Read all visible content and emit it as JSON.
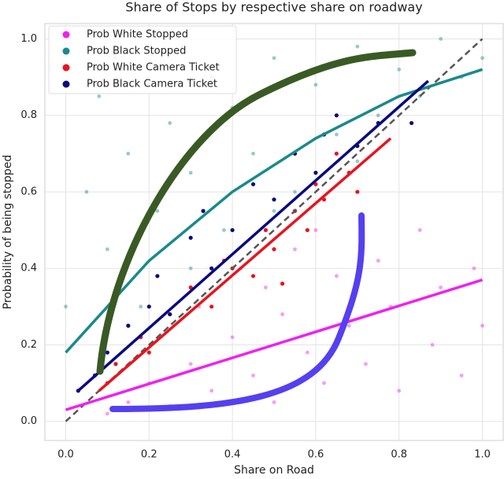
{
  "chart_data": {
    "type": "scatter",
    "title": "Share of Stops by respective share on roadway",
    "x_label": "Share on Road",
    "y_label": "Probability of being stopped",
    "xlim": [
      -0.05,
      1.05
    ],
    "ylim": [
      -0.05,
      1.04
    ],
    "xticks": [
      {
        "value": 0,
        "label": "0.0"
      },
      0.2,
      0.4,
      0.6,
      0.8,
      {
        "value": 1,
        "label": "1.0"
      }
    ],
    "yticks": [
      {
        "value": 0,
        "label": "0.0"
      },
      0.2,
      0.4,
      0.6,
      0.8,
      {
        "value": 1,
        "label": "1.0"
      }
    ],
    "grid": true,
    "legend": "upper left",
    "series": [
      {
        "name": "Prob White Stopped",
        "color": "#ee22ee",
        "x": [
          0.1,
          0.15,
          0.2,
          0.25,
          0.3,
          0.32,
          0.35,
          0.4,
          0.42,
          0.45,
          0.48,
          0.5,
          0.52,
          0.55,
          0.58,
          0.6,
          0.62,
          0.65,
          0.68,
          0.7,
          0.72,
          0.75,
          0.78,
          0.8,
          0.85,
          0.88,
          0.9,
          0.95,
          0.98,
          1.0
        ],
        "values": [
          0.02,
          0.05,
          0.1,
          0.04,
          0.15,
          0.3,
          0.08,
          0.22,
          0.4,
          0.12,
          0.35,
          0.05,
          0.28,
          0.45,
          0.18,
          0.5,
          0.1,
          0.38,
          0.25,
          0.6,
          0.15,
          0.42,
          0.3,
          0.08,
          0.5,
          0.2,
          0.35,
          0.12,
          0.4,
          0.25
        ],
        "fit": {
          "x": [
            0,
            1
          ],
          "values": [
            0.03,
            0.37
          ]
        }
      },
      {
        "name": "Prob Black Stopped",
        "color": "#1a8a8a",
        "x": [
          0.0,
          0.05,
          0.08,
          0.1,
          0.12,
          0.15,
          0.18,
          0.2,
          0.22,
          0.25,
          0.28,
          0.3,
          0.35,
          0.38,
          0.4,
          0.45,
          0.5,
          0.55,
          0.6,
          0.65,
          0.7,
          0.75,
          0.8,
          0.85,
          0.9,
          0.95,
          1.0,
          0.3,
          0.5,
          0.7
        ],
        "values": [
          0.3,
          0.6,
          0.85,
          0.45,
          0.95,
          0.7,
          0.3,
          0.88,
          0.55,
          0.78,
          0.98,
          0.65,
          0.9,
          0.5,
          0.82,
          0.7,
          0.95,
          0.6,
          0.88,
          0.75,
          0.98,
          0.8,
          0.92,
          0.85,
          1.0,
          0.9,
          0.95,
          0.4,
          0.55,
          0.68
        ],
        "fit": {
          "x": [
            0,
            0.2,
            0.4,
            0.6,
            0.8,
            1
          ],
          "values": [
            0.18,
            0.42,
            0.6,
            0.74,
            0.85,
            0.92
          ]
        }
      },
      {
        "name": "Prob White Camera Ticket",
        "color": "#e8141e",
        "x": [
          0.1,
          0.12,
          0.18,
          0.2,
          0.25,
          0.3,
          0.35,
          0.38,
          0.4,
          0.45,
          0.48,
          0.5,
          0.52,
          0.55,
          0.58,
          0.6,
          0.62,
          0.65,
          0.68,
          0.7
        ],
        "values": [
          0.1,
          0.15,
          0.22,
          0.18,
          0.28,
          0.35,
          0.3,
          0.42,
          0.4,
          0.38,
          0.5,
          0.45,
          0.36,
          0.55,
          0.5,
          0.62,
          0.58,
          0.7,
          0.65,
          0.6
        ],
        "fit": {
          "x": [
            0.08,
            0.78
          ],
          "values": [
            0.08,
            0.74
          ]
        }
      },
      {
        "name": "Prob Black Camera Ticket",
        "color": "#0a0a80",
        "x": [
          0.03,
          0.07,
          0.1,
          0.15,
          0.2,
          0.22,
          0.25,
          0.3,
          0.33,
          0.35,
          0.4,
          0.45,
          0.5,
          0.55,
          0.6,
          0.62,
          0.65,
          0.7,
          0.75,
          0.83
        ],
        "values": [
          0.08,
          0.12,
          0.18,
          0.25,
          0.3,
          0.38,
          0.28,
          0.48,
          0.55,
          0.4,
          0.5,
          0.62,
          0.58,
          0.7,
          0.65,
          0.75,
          0.8,
          0.72,
          0.78,
          0.78
        ],
        "fit": {
          "x": [
            0.03,
            0.87
          ],
          "values": [
            0.08,
            0.89
          ]
        }
      }
    ],
    "reference_line": {
      "x": [
        0,
        1
      ],
      "values": [
        0,
        1
      ]
    }
  }
}
